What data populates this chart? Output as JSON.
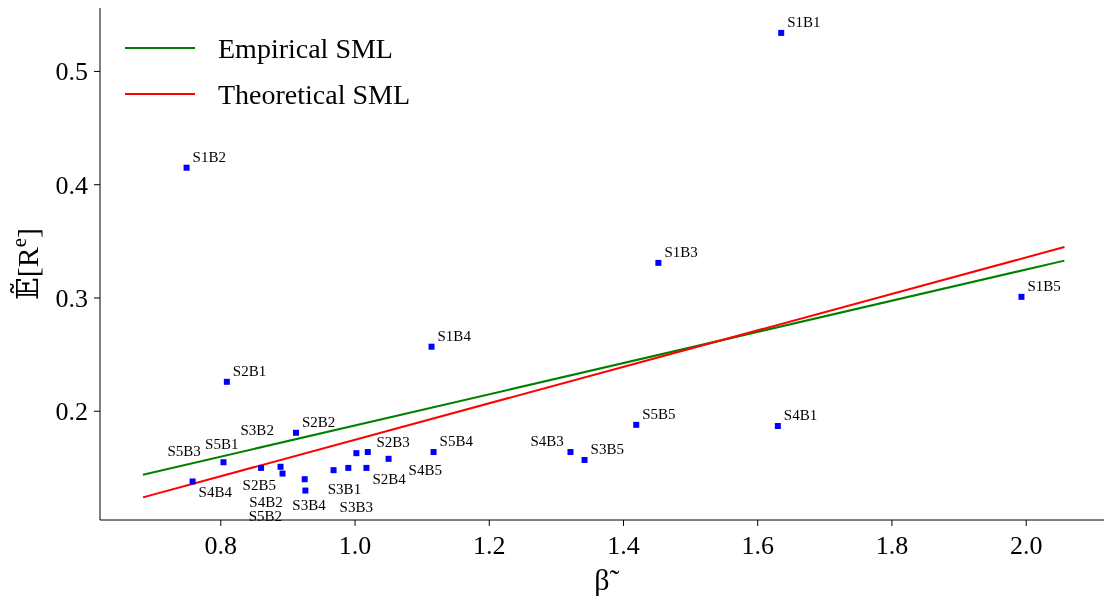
{
  "chart_data": {
    "type": "scatter",
    "xlabel": "β̃",
    "ylabel": "𝔼̃[R$^{e}$]",
    "xlim": [
      0.62,
      2.11
    ],
    "ylim": [
      0.104,
      0.556
    ],
    "xticks": [
      0.8,
      {
        "value": 1.0,
        "label": "1.0"
      },
      1.2,
      1.4,
      1.6,
      1.8,
      {
        "value": 2.0,
        "label": "2.0"
      }
    ],
    "yticks": [
      0.2,
      0.3,
      0.4,
      0.5
    ],
    "grid": false,
    "legend": "top left",
    "series": [
      {
        "name": "Empirical SML",
        "type": "line",
        "color": "#008000",
        "x": [
          0.684,
          2.057
        ],
        "values": [
          0.144,
          0.333
        ]
      },
      {
        "name": "Theoretical SML",
        "type": "line",
        "color": "#ff0000",
        "x": [
          0.684,
          2.057
        ],
        "values": [
          0.124,
          0.345
        ]
      },
      {
        "marker": "square",
        "color": "#0000ff",
        "x": [
          1.635,
          0.749,
          1.452,
          1.114,
          1.993,
          0.809,
          0.912,
          1.002,
          1.017,
          0.892,
          1.019,
          0.889,
          0.925,
          0.99,
          1.342,
          1.63,
          0.926,
          1.321,
          0.758,
          1.05,
          0.86,
          0.968,
          0.804,
          1.117,
          1.419
        ],
        "values": [
          0.534,
          0.415,
          0.331,
          0.257,
          0.301,
          0.226,
          0.181,
          0.163,
          0.15,
          0.145,
          0.164,
          0.151,
          0.14,
          0.15,
          0.157,
          0.187,
          0.13,
          0.164,
          0.138,
          0.158,
          0.15,
          0.148,
          0.155,
          0.164,
          0.188
        ]
      }
    ],
    "annotations": [
      {
        "text": "S1B1",
        "x": 1.635,
        "y": 0.534
      },
      {
        "text": "S1B2",
        "x": 0.749,
        "y": 0.415
      },
      {
        "text": "S1B3",
        "x": 1.452,
        "y": 0.331
      },
      {
        "text": "S1B4",
        "x": 1.114,
        "y": 0.257
      },
      {
        "text": "S1B5",
        "x": 1.993,
        "y": 0.301
      },
      {
        "text": "S2B1",
        "x": 0.809,
        "y": 0.226
      },
      {
        "text": "S2B2",
        "x": 0.912,
        "y": 0.181
      },
      {
        "text": "S2B3",
        "x": 1.002,
        "y": 0.163
      },
      {
        "text": "S2B4",
        "x": 1.017,
        "y": 0.15
      },
      {
        "text": "S2B5",
        "x": 0.892,
        "y": 0.145
      },
      {
        "text": "S3B1",
        "x": 1.019,
        "y": 0.164
      },
      {
        "text": "S3B2",
        "x": 0.889,
        "y": 0.151
      },
      {
        "text": "S3B3",
        "x": 0.968,
        "y": 0.148
      },
      {
        "text": "S3B4",
        "x": 0.99,
        "y": 0.15
      },
      {
        "text": "S3B5",
        "x": 1.342,
        "y": 0.157
      },
      {
        "text": "S4B1",
        "x": 1.63,
        "y": 0.187
      },
      {
        "text": "S4B2",
        "x": 0.926,
        "y": 0.13
      },
      {
        "text": "S4B3",
        "x": 1.321,
        "y": 0.164
      },
      {
        "text": "S4B4",
        "x": 0.758,
        "y": 0.138
      },
      {
        "text": "S4B5",
        "x": 1.05,
        "y": 0.158
      },
      {
        "text": "S5B1",
        "x": 0.86,
        "y": 0.15
      },
      {
        "text": "S5B2",
        "x": 0.925,
        "y": 0.14
      },
      {
        "text": "S5B3",
        "x": 0.804,
        "y": 0.155
      },
      {
        "text": "S5B4",
        "x": 1.117,
        "y": 0.164
      },
      {
        "text": "S5B5",
        "x": 1.419,
        "y": 0.188
      }
    ]
  }
}
